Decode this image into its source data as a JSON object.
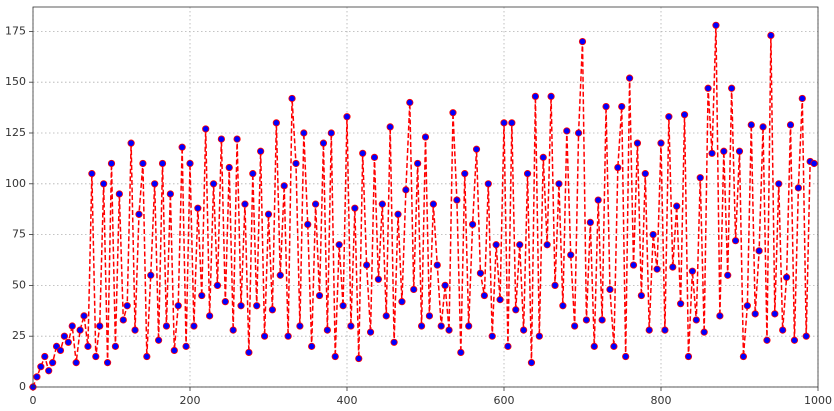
{
  "chart_data": {
    "type": "line",
    "x": [
      0,
      5,
      10,
      15,
      20,
      25,
      30,
      35,
      40,
      45,
      50,
      55,
      60,
      65,
      70,
      75,
      80,
      85,
      90,
      95,
      100,
      105,
      110,
      115,
      120,
      125,
      130,
      135,
      140,
      145,
      150,
      155,
      160,
      165,
      170,
      175,
      180,
      185,
      190,
      195,
      200,
      205,
      210,
      215,
      220,
      225,
      230,
      235,
      240,
      245,
      250,
      255,
      260,
      265,
      270,
      275,
      280,
      285,
      290,
      295,
      300,
      305,
      310,
      315,
      320,
      325,
      330,
      335,
      340,
      345,
      350,
      355,
      360,
      365,
      370,
      375,
      380,
      385,
      390,
      395,
      400,
      405,
      410,
      415,
      420,
      425,
      430,
      435,
      440,
      445,
      450,
      455,
      460,
      465,
      470,
      475,
      480,
      485,
      490,
      495,
      500,
      505,
      510,
      515,
      520,
      525,
      530,
      535,
      540,
      545,
      550,
      555,
      560,
      565,
      570,
      575,
      580,
      585,
      590,
      595,
      600,
      605,
      610,
      615,
      620,
      625,
      630,
      635,
      640,
      645,
      650,
      655,
      660,
      665,
      670,
      675,
      680,
      685,
      690,
      695,
      700,
      705,
      710,
      715,
      720,
      725,
      730,
      735,
      740,
      745,
      750,
      755,
      760,
      765,
      770,
      775,
      780,
      785,
      790,
      795,
      800,
      805,
      810,
      815,
      820,
      825,
      830,
      835,
      840,
      845,
      850,
      855,
      860,
      865,
      870,
      875,
      880,
      885,
      890,
      895,
      900,
      905,
      910,
      915,
      920,
      925,
      930,
      935,
      940,
      945,
      950,
      955,
      960,
      965,
      970,
      975,
      980,
      985,
      990,
      995
    ],
    "series": [
      {
        "color": "#ff0000",
        "marker_color": "#0000ff",
        "values": [
          0,
          5,
          10,
          15,
          8,
          12,
          20,
          18,
          25,
          22,
          30,
          12,
          28,
          35,
          20,
          105,
          15,
          30,
          100,
          12,
          110,
          20,
          95,
          33,
          40,
          120,
          28,
          85,
          110,
          15,
          55,
          100,
          23,
          110,
          30,
          95,
          18,
          40,
          118,
          20,
          110,
          30,
          88,
          45,
          127,
          35,
          100,
          50,
          122,
          42,
          108,
          28,
          122,
          40,
          90,
          17,
          105,
          40,
          116,
          25,
          85,
          38,
          130,
          55,
          99,
          25,
          142,
          110,
          30,
          125,
          80,
          20,
          90,
          45,
          120,
          28,
          125,
          15,
          70,
          40,
          133,
          30,
          88,
          14,
          115,
          60,
          27,
          113,
          53,
          90,
          35,
          128,
          22,
          85,
          42,
          97,
          140,
          48,
          110,
          30,
          123,
          35,
          90,
          60,
          30,
          50,
          28,
          135,
          92,
          17,
          105,
          30,
          80,
          117,
          56,
          45,
          100,
          25,
          70,
          43,
          130,
          20,
          130,
          38,
          70,
          28,
          105,
          12,
          143,
          25,
          113,
          70,
          143,
          50,
          100,
          40,
          126,
          65,
          30,
          125,
          170,
          33,
          81,
          20,
          92,
          33,
          138,
          48,
          20,
          108,
          138,
          15,
          152,
          60,
          120,
          45,
          105,
          28,
          75,
          58,
          120,
          28,
          133,
          59,
          89,
          41,
          134,
          15,
          57,
          33,
          103,
          27,
          147,
          115,
          178,
          35,
          116,
          55,
          147,
          72,
          116,
          15,
          40,
          129,
          36,
          67,
          128,
          23,
          173,
          36,
          100,
          28,
          54,
          129,
          23,
          98,
          142,
          25,
          111,
          110
        ]
      }
    ],
    "xlim": [
      0,
      1000
    ],
    "ylim": [
      0,
      187
    ],
    "xticks": [
      0,
      200,
      400,
      600,
      800,
      1000
    ],
    "yticks": [
      0,
      25,
      50,
      75,
      100,
      125,
      150,
      175
    ],
    "grid": true
  }
}
